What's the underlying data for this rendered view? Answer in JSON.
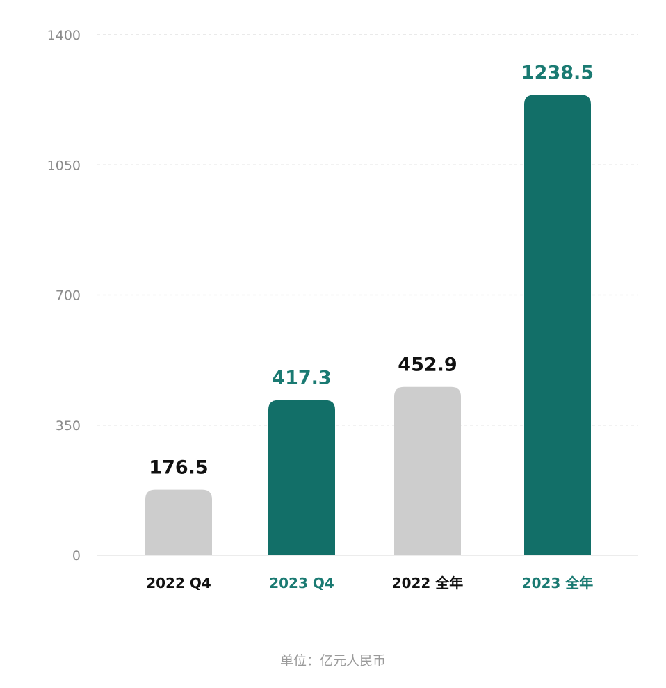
{
  "chart_data": {
    "type": "bar",
    "categories": [
      "2022 Q4",
      "2023 Q4",
      "2022 全年",
      "2023 全年"
    ],
    "values": [
      176.5,
      417.3,
      452.9,
      1238.5
    ],
    "value_labels": [
      "176.5",
      "417.3",
      "452.9",
      "1238.5"
    ],
    "ylim": [
      0,
      1400
    ],
    "yticks": [
      0,
      350,
      700,
      1050,
      1400
    ],
    "ytick_labels": [
      "0",
      "350",
      "700",
      "1050",
      "1400"
    ],
    "grid": true,
    "title": "",
    "xlabel": "",
    "ylabel": "",
    "colors": {
      "gray_bar": "#cdcdcd",
      "teal_bar": "#126f68",
      "teal_text": "#1a7a72",
      "dark_text": "#111111",
      "tick_text": "#8c8c8c",
      "grid": "#dedede"
    },
    "bar_colors": [
      "#cdcdcd",
      "#126f68",
      "#cdcdcd",
      "#126f68"
    ],
    "label_colors": [
      "#111111",
      "#1a7a72",
      "#111111",
      "#1a7a72"
    ]
  },
  "unit_note": "单位：亿元人民币"
}
